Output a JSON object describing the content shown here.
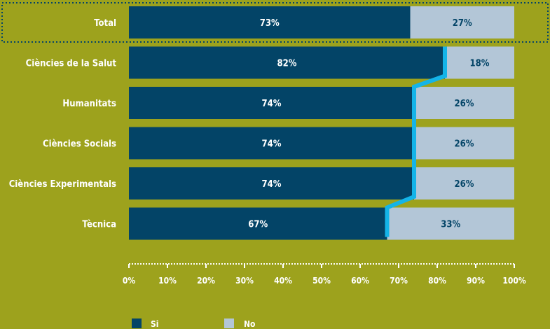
{
  "chart_data": {
    "type": "bar",
    "orientation": "horizontal",
    "stacked": true,
    "categories": [
      "Total",
      "Ciències de la Salut",
      "Humanitats",
      "Ciències Socials",
      "Ciències Experimentals",
      "Tècnica"
    ],
    "series": [
      {
        "name": "Si",
        "values": [
          73,
          82,
          74,
          74,
          74,
          67
        ],
        "labels": [
          "73%",
          "82%",
          "74%",
          "74%",
          "74%",
          "67%"
        ]
      },
      {
        "name": "No",
        "values": [
          27,
          18,
          26,
          26,
          26,
          33
        ],
        "labels": [
          "27%",
          "18%",
          "26%",
          "26%",
          "26%",
          "33%"
        ]
      }
    ],
    "xlim": [
      0,
      100
    ],
    "x_ticks": [
      "0%",
      "10%",
      "20%",
      "30%",
      "40%",
      "50%",
      "60%",
      "70%",
      "80%",
      "90%",
      "100%"
    ],
    "highlighted_category": "Total",
    "legend_position": "bottom",
    "colors": {
      "background": "#9da21d",
      "si": "#034467",
      "no": "#b3c6d7",
      "si_text": "#ffffff",
      "no_text": "#034467",
      "connector": "#14b4e8",
      "axis": "#ffffff",
      "highlight_box": "#034467"
    }
  }
}
